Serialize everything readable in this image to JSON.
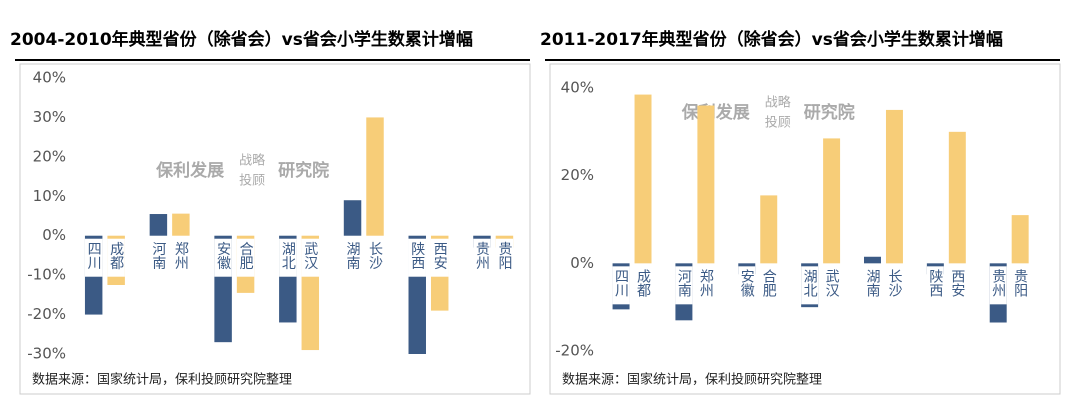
{
  "chart_data": [
    {
      "type": "bar",
      "title": "2004-2010年典型省份（除省会）vs省会小学生数累计增幅",
      "series": [
        {
          "color": "#3b5a85",
          "labels": [
            "四川",
            "河南",
            "安徽",
            "湖北",
            "湖南",
            "陕西",
            "贵州"
          ],
          "values": [
            -20,
            5.5,
            -27,
            -22,
            9,
            -30,
            -3
          ]
        },
        {
          "color": "#f7cd78",
          "labels": [
            "成都",
            "郑州",
            "合肥",
            "武汉",
            "长沙",
            "西安",
            "贵阳"
          ],
          "values": [
            -12.5,
            5.6,
            -14.5,
            -29,
            30,
            -19,
            -3
          ]
        }
      ],
      "ylim": [
        -30,
        40
      ],
      "yticks": [
        {
          "value": -30,
          "label": "-30%"
        },
        {
          "value": -20,
          "label": "-20%"
        },
        {
          "value": -10,
          "label": "-10%"
        },
        {
          "value": 0,
          "label": "0%"
        },
        {
          "value": 10,
          "label": "10%"
        },
        {
          "value": 20,
          "label": "20%"
        },
        {
          "value": 30,
          "label": "30%"
        },
        {
          "value": 40,
          "label": "40%"
        }
      ],
      "watermark": [
        "保利发展",
        "战略",
        "投顾",
        "研究院"
      ],
      "source": "数据来源：国家统计局，保利投顾研究院整理"
    },
    {
      "type": "bar",
      "title": "2011-2017年典型省份（除省会）vs省会小学生数累计增幅",
      "series": [
        {
          "color": "#3b5a85",
          "labels": [
            "四川",
            "河南",
            "安徽",
            "湖北",
            "湖南",
            "陕西",
            "贵州"
          ],
          "values": [
            -10.5,
            -13,
            -2.5,
            -10,
            1.5,
            -2.5,
            -13.5
          ]
        },
        {
          "color": "#f7cd78",
          "labels": [
            "成都",
            "郑州",
            "合肥",
            "武汉",
            "长沙",
            "西安",
            "贵阳"
          ],
          "values": [
            38.5,
            36,
            15.5,
            28.5,
            35,
            30,
            11
          ]
        }
      ],
      "ylim": [
        -20,
        40
      ],
      "yticks": [
        {
          "value": -20,
          "label": "-20%"
        },
        {
          "value": 0,
          "label": "0%"
        },
        {
          "value": 20,
          "label": "20%"
        },
        {
          "value": 40,
          "label": "40%"
        }
      ],
      "watermark": [
        "保利发展",
        "战略",
        "投顾",
        "研究院"
      ],
      "source": "数据来源：国家统计局，保利投顾研究院整理"
    }
  ]
}
